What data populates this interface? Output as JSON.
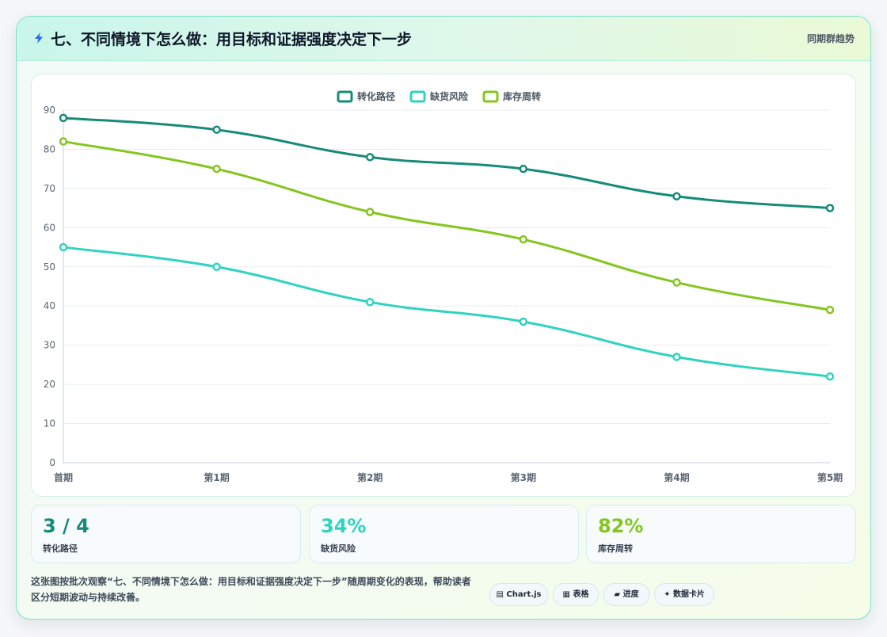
{
  "header": {
    "title": "七、不同情境下怎么做：用目标和证据强度决定下一步",
    "right_label": "同期群趋势",
    "icon": "lightning-icon"
  },
  "chart_data": {
    "type": "line",
    "categories": [
      "首期",
      "第1期",
      "第2期",
      "第3期",
      "第4期",
      "第5期"
    ],
    "series": [
      {
        "name": "转化路径",
        "color": "#168b7a",
        "values": [
          88,
          85,
          78,
          75,
          68,
          65
        ]
      },
      {
        "name": "缺货风险",
        "color": "#2fd3c0",
        "values": [
          55,
          50,
          41,
          36,
          27,
          22
        ]
      },
      {
        "name": "库存周转",
        "color": "#84c51e",
        "values": [
          82,
          75,
          64,
          57,
          46,
          39
        ]
      }
    ],
    "y_ticks": [
      "0",
      "10",
      "20",
      "30",
      "40",
      "50",
      "60",
      "70",
      "80",
      "90"
    ],
    "ylim": [
      0,
      90
    ],
    "grid": true,
    "legend_position": "top-center"
  },
  "stats": [
    {
      "value": "3 / 4",
      "label": "转化路径",
      "color": "#168b7a"
    },
    {
      "value": "34%",
      "label": "缺货风险",
      "color": "#2fd3c0"
    },
    {
      "value": "82%",
      "label": "库存周转",
      "color": "#84c51e"
    }
  ],
  "description": "这张图按批次观察“七、不同情境下怎么做：用目标和证据强度决定下一步”随周期变化的表现，帮助读者区分短期波动与持续改善。",
  "chips": [
    {
      "label": "Chart.js",
      "icon": "chart-icon",
      "glyph": "▤"
    },
    {
      "label": "表格",
      "icon": "table-icon",
      "glyph": "▦"
    },
    {
      "label": "进度",
      "icon": "progress-icon",
      "glyph": "▰"
    },
    {
      "label": "数据卡片",
      "icon": "card-icon",
      "glyph": "✦"
    }
  ]
}
